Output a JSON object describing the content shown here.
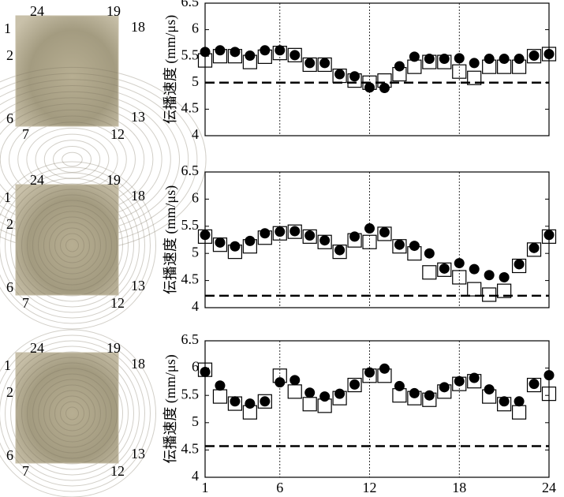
{
  "chart_data": [
    {
      "type": "scatter",
      "ylabel": "伝播速度 (mm/μs)",
      "position_labels": [
        "24",
        "19",
        "1",
        "18",
        "2",
        "6",
        "13",
        "7",
        "12"
      ],
      "x": [
        1,
        2,
        3,
        4,
        5,
        6,
        7,
        8,
        9,
        10,
        11,
        12,
        13,
        14,
        15,
        16,
        17,
        18,
        19,
        20,
        21,
        22,
        23,
        24
      ],
      "xlim": [
        1,
        24
      ],
      "xticks": [
        1,
        6,
        12,
        18,
        24
      ],
      "show_xtick_labels": false,
      "grid_x": true,
      "ylim": [
        4,
        6.5
      ],
      "yticks": [
        4,
        4.5,
        5,
        5.5,
        6,
        6.5
      ],
      "reference_line": 5.0,
      "series": [
        {
          "marker": "square",
          "color": "#000",
          "values": [
            5.42,
            5.5,
            5.5,
            5.39,
            5.49,
            5.56,
            5.52,
            5.34,
            5.34,
            5.13,
            5.04,
            5.0,
            5.04,
            5.16,
            5.3,
            5.39,
            5.39,
            5.21,
            5.09,
            5.3,
            5.3,
            5.3,
            5.5,
            5.54
          ]
        },
        {
          "marker": "circle",
          "color": "#000",
          "values": [
            5.58,
            5.61,
            5.58,
            5.51,
            5.61,
            5.61,
            5.52,
            5.37,
            5.37,
            5.16,
            5.12,
            4.91,
            4.9,
            5.31,
            5.49,
            5.45,
            5.45,
            5.46,
            5.37,
            5.45,
            5.45,
            5.45,
            5.51,
            5.54
          ]
        }
      ]
    },
    {
      "type": "scatter",
      "ylabel": "伝播速度 (mm/μs)",
      "position_labels": [
        "24",
        "19",
        "1",
        "18",
        "2",
        "6",
        "13",
        "7",
        "12"
      ],
      "x": [
        1,
        2,
        3,
        4,
        5,
        6,
        7,
        8,
        9,
        10,
        11,
        12,
        13,
        14,
        15,
        16,
        17,
        18,
        19,
        20,
        21,
        22,
        23,
        24
      ],
      "xlim": [
        1,
        24
      ],
      "xticks": [
        1,
        6,
        12,
        18,
        24
      ],
      "show_xtick_labels": false,
      "grid_x": true,
      "ylim": [
        4,
        6.5
      ],
      "yticks": [
        4,
        4.5,
        5,
        5.5,
        6,
        6.5
      ],
      "reference_line": 4.22,
      "series": [
        {
          "marker": "square",
          "color": "#000",
          "values": [
            5.31,
            5.16,
            5.03,
            5.13,
            5.29,
            5.37,
            5.4,
            5.31,
            5.21,
            5.03,
            5.24,
            5.21,
            5.36,
            5.13,
            5.0,
            4.65,
            4.7,
            4.56,
            4.34,
            4.24,
            4.31,
            4.77,
            5.07,
            5.31
          ]
        },
        {
          "marker": "circle",
          "color": "#000",
          "values": [
            5.34,
            5.2,
            5.13,
            5.23,
            5.37,
            5.4,
            5.41,
            5.33,
            5.24,
            5.06,
            5.31,
            5.46,
            5.39,
            5.16,
            5.14,
            5.0,
            4.72,
            4.82,
            4.71,
            4.6,
            4.56,
            4.8,
            5.1,
            5.34
          ]
        }
      ]
    },
    {
      "type": "scatter",
      "ylabel": "伝播速度 (mm/μs)",
      "position_labels": [
        "24",
        "19",
        "1",
        "18",
        "2",
        "6",
        "13",
        "7",
        "12"
      ],
      "x": [
        1,
        2,
        3,
        4,
        5,
        6,
        7,
        8,
        9,
        10,
        11,
        12,
        13,
        14,
        15,
        16,
        17,
        18,
        19,
        20,
        21,
        22,
        23,
        24
      ],
      "xlim": [
        1,
        24
      ],
      "xticks": [
        1,
        6,
        12,
        18,
        24
      ],
      "show_xtick_labels": true,
      "grid_x": true,
      "ylim": [
        4,
        6.5
      ],
      "yticks": [
        4,
        4.5,
        5,
        5.5,
        6,
        6.5
      ],
      "reference_line": 4.57,
      "series": [
        {
          "marker": "square",
          "color": "#000",
          "values": [
            5.97,
            5.48,
            5.35,
            5.19,
            5.39,
            5.86,
            5.57,
            5.34,
            5.31,
            5.45,
            5.69,
            5.86,
            5.86,
            5.5,
            5.45,
            5.42,
            5.57,
            5.71,
            5.76,
            5.48,
            5.34,
            5.19,
            5.69,
            5.53
          ]
        },
        {
          "marker": "circle",
          "color": "#000",
          "values": [
            5.93,
            5.68,
            5.39,
            5.35,
            5.39,
            5.74,
            5.78,
            5.55,
            5.48,
            5.53,
            5.7,
            5.92,
            5.99,
            5.67,
            5.54,
            5.5,
            5.65,
            5.76,
            5.82,
            5.61,
            5.39,
            5.39,
            5.71,
            5.87
          ]
        }
      ]
    }
  ]
}
